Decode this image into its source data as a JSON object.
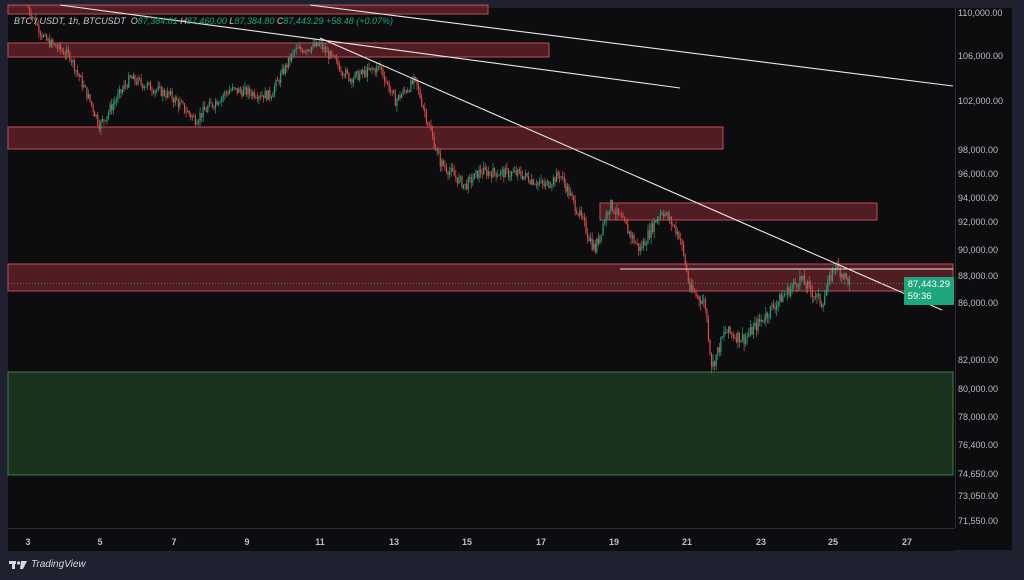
{
  "legend": {
    "symbol": "BTC / USDT, 1h, BTCUSDT",
    "open_label": "O",
    "open": "87,384.81",
    "high_label": "H",
    "high": "87,460.00",
    "low_label": "L",
    "low": "87,384.80",
    "close_label": "C",
    "close": "87,443.29",
    "change": "+58.48 (+0.07%)"
  },
  "price_axis": [
    "110,000.00",
    "106,000.00",
    "102,000.00",
    "98,000.00",
    "96,000.00",
    "94,000.00",
    "92,000.00",
    "90,000.00",
    "88,000.00",
    "86,000.00",
    "82,000.00",
    "80,000.00",
    "78,000.00",
    "76,400.00",
    "74,650.00",
    "73,050.00",
    "71,550.00"
  ],
  "time_axis": [
    "3",
    "5",
    "7",
    "9",
    "11",
    "13",
    "15",
    "17",
    "19",
    "21",
    "23",
    "25",
    "27"
  ],
  "price_tag": {
    "price": "87,443.29",
    "countdown": "59:36"
  },
  "brand": "TradingView",
  "colors": {
    "up": "#1ea67c",
    "down": "#e04b4b",
    "resistance_zone": "#8a2a33",
    "support_zone": "#1f3d22",
    "trendline": "#e8e8e8"
  }
}
